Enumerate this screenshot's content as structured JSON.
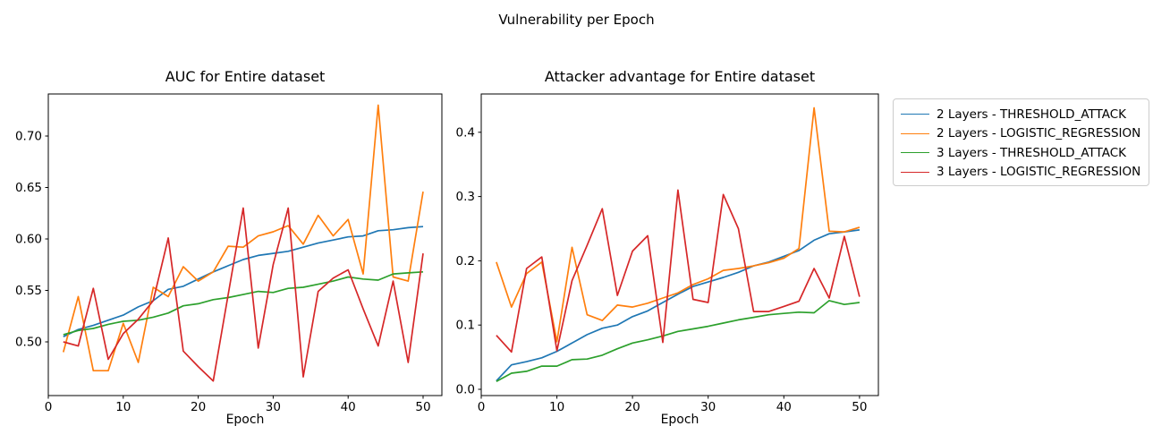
{
  "figure": {
    "suptitle": "Vulnerability per Epoch",
    "background": "#ffffff",
    "text_color": "#000000"
  },
  "colors": {
    "blue": "#1f77b4",
    "orange": "#ff7f0e",
    "green": "#2ca02c",
    "red": "#d62728",
    "spine": "#000000",
    "legend_border": "#cccccc"
  },
  "legend": {
    "position": "outside upper right",
    "entries": [
      {
        "label": "2 Layers - THRESHOLD_ATTACK",
        "color": "blue"
      },
      {
        "label": "2 Layers - LOGISTIC_REGRESSION",
        "color": "orange"
      },
      {
        "label": "3 Layers - THRESHOLD_ATTACK",
        "color": "green"
      },
      {
        "label": "3 Layers - LOGISTIC_REGRESSION",
        "color": "red"
      }
    ]
  },
  "chart_data": [
    {
      "type": "line",
      "title": "AUC for Entire dataset",
      "xlabel": "Epoch",
      "ylabel": "",
      "grid": false,
      "xlim": [
        0,
        52.5
      ],
      "ylim": [
        0.4478,
        0.7409
      ],
      "xticks": [
        0,
        10,
        20,
        30,
        40,
        50
      ],
      "xtick_labels": [
        "0",
        "10",
        "20",
        "30",
        "40",
        "50"
      ],
      "yticks": [
        0.5,
        0.55,
        0.6,
        0.65,
        0.7
      ],
      "ytick_labels": [
        "0.50",
        "0.55",
        "0.60",
        "0.65",
        "0.70"
      ],
      "x": [
        2,
        4,
        6,
        8,
        10,
        12,
        14,
        16,
        18,
        20,
        22,
        24,
        26,
        28,
        30,
        32,
        34,
        36,
        38,
        40,
        42,
        44,
        46,
        48,
        50
      ],
      "series": [
        {
          "name": "2 Layers - THRESHOLD_ATTACK",
          "color": "blue",
          "values": [
            0.505,
            0.512,
            0.516,
            0.521,
            0.526,
            0.534,
            0.54,
            0.551,
            0.554,
            0.561,
            0.568,
            0.574,
            0.58,
            0.584,
            0.586,
            0.588,
            0.592,
            0.596,
            0.599,
            0.602,
            0.603,
            0.608,
            0.609,
            0.611,
            0.612
          ]
        },
        {
          "name": "2 Layers - LOGISTIC_REGRESSION",
          "color": "orange",
          "values": [
            0.49,
            0.544,
            0.472,
            0.472,
            0.518,
            0.48,
            0.553,
            0.544,
            0.573,
            0.559,
            0.568,
            0.593,
            0.592,
            0.603,
            0.607,
            0.613,
            0.595,
            0.623,
            0.603,
            0.619,
            0.566,
            0.73,
            0.563,
            0.559,
            0.646
          ]
        },
        {
          "name": "3 Layers - THRESHOLD_ATTACK",
          "color": "green",
          "values": [
            0.507,
            0.511,
            0.513,
            0.517,
            0.52,
            0.521,
            0.524,
            0.528,
            0.535,
            0.537,
            0.541,
            0.543,
            0.546,
            0.549,
            0.548,
            0.552,
            0.553,
            0.556,
            0.559,
            0.563,
            0.561,
            0.56,
            0.566,
            0.567,
            0.568
          ]
        },
        {
          "name": "3 Layers - LOGISTIC_REGRESSION",
          "color": "red",
          "values": [
            0.5,
            0.496,
            0.552,
            0.483,
            0.508,
            0.522,
            0.54,
            0.601,
            0.491,
            0.476,
            0.462,
            0.546,
            0.63,
            0.494,
            0.575,
            0.63,
            0.466,
            0.549,
            0.562,
            0.57,
            0.532,
            0.496,
            0.559,
            0.48,
            0.586
          ]
        }
      ]
    },
    {
      "type": "line",
      "title": "Attacker advantage for Entire dataset",
      "xlabel": "Epoch",
      "ylabel": "",
      "grid": false,
      "xlim": [
        0,
        52.5
      ],
      "ylim": [
        -0.0098,
        0.4596
      ],
      "xticks": [
        0,
        10,
        20,
        30,
        40,
        50
      ],
      "xtick_labels": [
        "0",
        "10",
        "20",
        "30",
        "40",
        "50"
      ],
      "yticks": [
        0.0,
        0.1,
        0.2,
        0.3,
        0.4
      ],
      "ytick_labels": [
        "0.0",
        "0.1",
        "0.2",
        "0.3",
        "0.4"
      ],
      "x": [
        2,
        4,
        6,
        8,
        10,
        12,
        14,
        16,
        18,
        20,
        22,
        24,
        26,
        28,
        30,
        32,
        34,
        36,
        38,
        40,
        42,
        44,
        46,
        48,
        50
      ],
      "series": [
        {
          "name": "2 Layers - THRESHOLD_ATTACK",
          "color": "blue",
          "values": [
            0.013,
            0.038,
            0.043,
            0.049,
            0.059,
            0.072,
            0.085,
            0.095,
            0.1,
            0.113,
            0.122,
            0.135,
            0.148,
            0.16,
            0.167,
            0.174,
            0.182,
            0.192,
            0.198,
            0.207,
            0.216,
            0.232,
            0.242,
            0.245,
            0.248
          ]
        },
        {
          "name": "2 Layers - LOGISTIC_REGRESSION",
          "color": "orange",
          "values": [
            0.198,
            0.128,
            0.18,
            0.198,
            0.074,
            0.221,
            0.116,
            0.107,
            0.131,
            0.128,
            0.134,
            0.142,
            0.15,
            0.163,
            0.172,
            0.185,
            0.188,
            0.192,
            0.197,
            0.204,
            0.219,
            0.438,
            0.246,
            0.245,
            0.252
          ]
        },
        {
          "name": "3 Layers - THRESHOLD_ATTACK",
          "color": "green",
          "values": [
            0.012,
            0.025,
            0.028,
            0.036,
            0.036,
            0.046,
            0.047,
            0.053,
            0.063,
            0.072,
            0.077,
            0.083,
            0.09,
            0.094,
            0.098,
            0.103,
            0.108,
            0.112,
            0.116,
            0.118,
            0.12,
            0.119,
            0.138,
            0.132,
            0.135
          ]
        },
        {
          "name": "3 Layers - LOGISTIC_REGRESSION",
          "color": "red",
          "values": [
            0.084,
            0.058,
            0.188,
            0.206,
            0.06,
            0.169,
            0.224,
            0.281,
            0.146,
            0.215,
            0.239,
            0.073,
            0.31,
            0.14,
            0.135,
            0.303,
            0.25,
            0.121,
            0.121,
            0.129,
            0.137,
            0.188,
            0.142,
            0.238,
            0.144
          ]
        }
      ]
    }
  ]
}
